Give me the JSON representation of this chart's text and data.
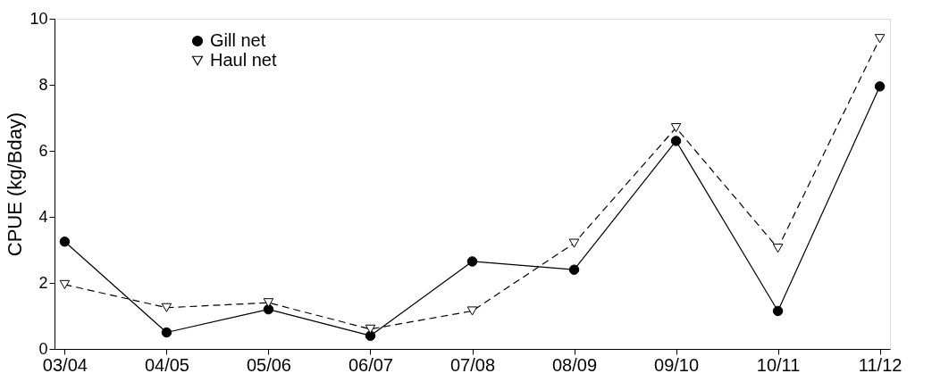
{
  "chart_data": {
    "type": "line",
    "ylabel": "CPUE (kg/Bday)",
    "categories": [
      "03/04",
      "04/05",
      "05/06",
      "06/07",
      "07/08",
      "08/09",
      "09/10",
      "10/11",
      "11/12"
    ],
    "series": [
      {
        "name": "Gill net",
        "color": "#000000",
        "marker": "circle",
        "line_style": "solid",
        "values": [
          3.25,
          0.5,
          1.2,
          0.4,
          2.65,
          2.4,
          6.3,
          1.15,
          7.95
        ]
      },
      {
        "name": "Haul net",
        "color": "#000000",
        "marker": "triangle",
        "line_style": "dashed",
        "values": [
          1.95,
          1.25,
          1.4,
          0.6,
          1.15,
          3.2,
          6.7,
          3.05,
          9.4
        ]
      }
    ],
    "ylim": [
      0,
      10
    ],
    "yticks": [
      0,
      2,
      4,
      6,
      8,
      10
    ],
    "grid": false,
    "legend": "top left"
  }
}
